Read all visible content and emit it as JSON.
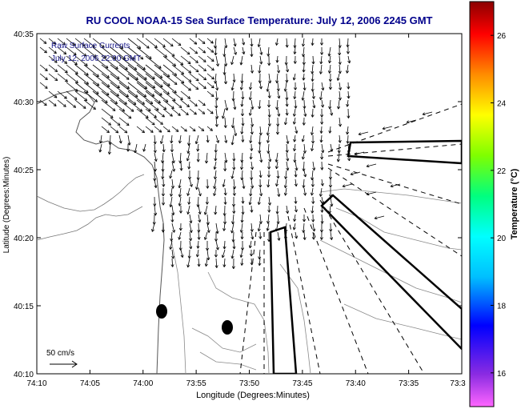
{
  "title": "RU COOL  NOAA-15  Sea Surface Temperature:  July 12, 2006 2245 GMT",
  "overlay_text": {
    "line1": "Raw Surface Currents",
    "line2": "July 12, 2006 22:00 GMT"
  },
  "axes": {
    "xlabel": "Longitude (Degrees:Minutes)",
    "ylabel": "Latitude (Degrees:Minutes)",
    "xticks": [
      "74:10",
      "74:05",
      "74:00",
      "73:55",
      "73:50",
      "73:45",
      "73:40",
      "73:35",
      "73:3"
    ],
    "yticks": [
      "40:35",
      "40:30",
      "40:25",
      "40:20",
      "40:15",
      "40:10"
    ]
  },
  "scale_label": "50 cm/s",
  "colorbar": {
    "label": "Temperature (°C)",
    "ticks": [
      "26",
      "24",
      "22",
      "20",
      "18",
      "16"
    ],
    "range": [
      15,
      27
    ]
  },
  "colors": {
    "title": "#00008b",
    "overlay_text": "#1a1a8c",
    "contour": "#8a8a8a",
    "vectors": "#000000"
  }
}
